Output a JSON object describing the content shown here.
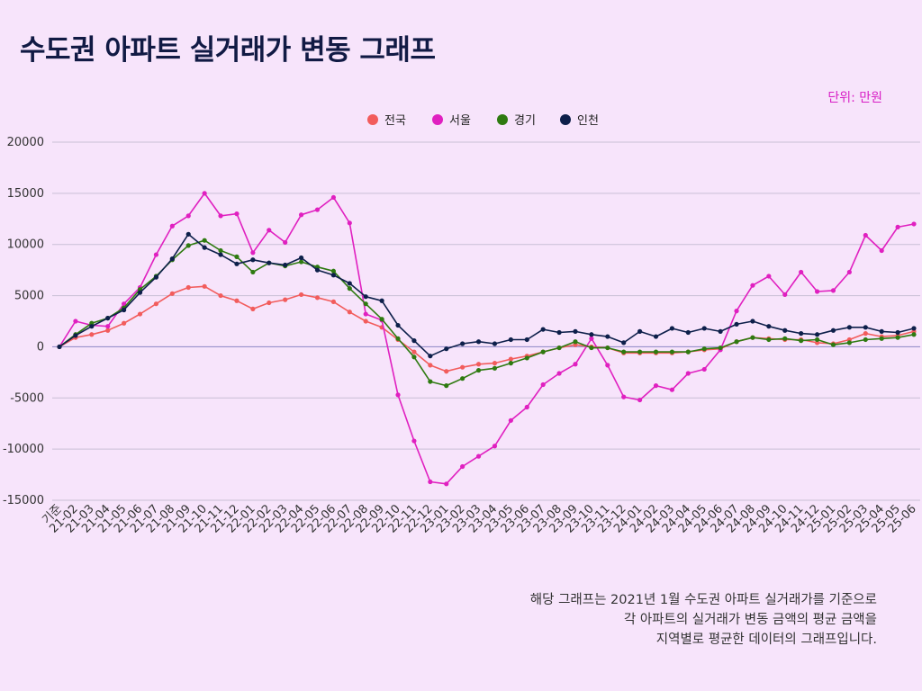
{
  "title": "수도권 아파트 실거래가 변동 그래프",
  "unit_label": "단위: 만원",
  "note_lines": [
    "해당 그래프는 2021년 1월 수도권 아파트 실거래가를 기준으로",
    "각 아파트의 실거래가 변동 금액의 평균 금액을",
    "지역별로 평균한 데이터의 그래프입니다."
  ],
  "chart_data": {
    "type": "line",
    "title": "수도권 아파트 실거래가 변동 그래프",
    "ylabel": "",
    "xlabel": "",
    "ylim": [
      -15000,
      20000
    ],
    "yticks": [
      20000,
      15000,
      10000,
      5000,
      0,
      -5000,
      -10000,
      -15000
    ],
    "grid": true,
    "legend_position": "top-center",
    "x": [
      "기준",
      "21-02",
      "21-03",
      "21-04",
      "21-05",
      "21-06",
      "21-07",
      "21-08",
      "21-09",
      "21-10",
      "21-11",
      "21-12",
      "22-01",
      "22-02",
      "22-03",
      "22-04",
      "22-05",
      "22-06",
      "22-07",
      "22-08",
      "22-09",
      "22-10",
      "22-11",
      "22-12",
      "23-01",
      "23-02",
      "23-03",
      "23-04",
      "23-05",
      "23-06",
      "23-07",
      "23-08",
      "23-09",
      "23-10",
      "23-11",
      "23-12",
      "24-01",
      "24-02",
      "24-03",
      "24-04",
      "24-05",
      "24-06",
      "24-07",
      "24-08",
      "24-09",
      "24-10",
      "24-11",
      "24-12",
      "25-01",
      "25-02",
      "25-03",
      "25-04",
      "25-05",
      "25-06"
    ],
    "series": [
      {
        "name": "전국",
        "color": "#f25c5c",
        "values": [
          0,
          900,
          1200,
          1600,
          2300,
          3200,
          4200,
          5200,
          5800,
          5900,
          5000,
          4500,
          3700,
          4300,
          4600,
          5100,
          4800,
          4400,
          3400,
          2500,
          1900,
          700,
          -500,
          -1800,
          -2400,
          -2000,
          -1700,
          -1600,
          -1200,
          -900,
          -500,
          -100,
          200,
          0,
          -100,
          -600,
          -600,
          -600,
          -600,
          -500,
          -300,
          -200,
          500,
          900,
          800,
          700,
          700,
          400,
          300,
          700,
          1300,
          1000,
          1100,
          1500
        ]
      },
      {
        "name": "서울",
        "color": "#e020c0",
        "values": [
          0,
          2500,
          2100,
          2000,
          4200,
          5800,
          9000,
          11800,
          12800,
          15000,
          12800,
          13000,
          9200,
          11400,
          10200,
          12900,
          13400,
          14600,
          12100,
          3200,
          2600,
          -4700,
          -9200,
          -13200,
          -13400,
          -11700,
          -10700,
          -9700,
          -7200,
          -5900,
          -3700,
          -2600,
          -1700,
          800,
          -1800,
          -4900,
          -5200,
          -3800,
          -4200,
          -2600,
          -2200,
          -300,
          3500,
          6000,
          6900,
          5100,
          7300,
          5400,
          5500,
          7300,
          10900,
          9400,
          11700,
          12000
        ]
      },
      {
        "name": "경기",
        "color": "#2e7a10",
        "values": [
          0,
          1200,
          2300,
          2800,
          3800,
          5600,
          6900,
          8500,
          9900,
          10400,
          9400,
          8800,
          7300,
          8200,
          7900,
          8300,
          7800,
          7400,
          5700,
          4200,
          2700,
          800,
          -1000,
          -3400,
          -3800,
          -3100,
          -2300,
          -2100,
          -1600,
          -1100,
          -500,
          -100,
          500,
          -100,
          -100,
          -500,
          -500,
          -500,
          -500,
          -500,
          -200,
          -100,
          500,
          900,
          700,
          800,
          600,
          700,
          200,
          400,
          700,
          800,
          900,
          1200
        ]
      },
      {
        "name": "인천",
        "color": "#0d1f4a",
        "values": [
          0,
          1100,
          2000,
          2800,
          3600,
          5300,
          6800,
          8600,
          11000,
          9700,
          9000,
          8100,
          8500,
          8200,
          8000,
          8700,
          7500,
          7000,
          6200,
          4900,
          4500,
          2100,
          600,
          -900,
          -200,
          300,
          500,
          300,
          700,
          700,
          1700,
          1400,
          1500,
          1200,
          1000,
          400,
          1500,
          1000,
          1800,
          1400,
          1800,
          1500,
          2200,
          2500,
          2000,
          1600,
          1300,
          1200,
          1600,
          1900,
          1900,
          1500,
          1400,
          1800
        ]
      }
    ]
  }
}
